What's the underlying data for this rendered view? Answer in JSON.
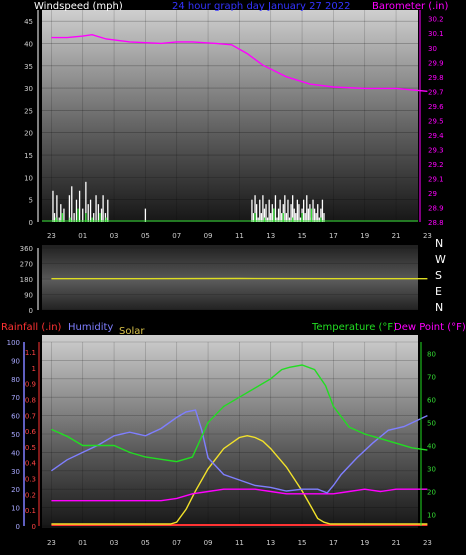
{
  "colors": {
    "wind": "#ffffff",
    "gust": "#33dd33",
    "barometer": "#ff00ff",
    "wind_dir": "#dddd22",
    "rain": "#ff3333",
    "humidity": "#7f7fff",
    "solar": "#f2e22a",
    "temperature": "#22dd22",
    "dew_point": "#ff00ff",
    "title": "#3333ff"
  },
  "time_labels": [
    "23",
    "01",
    "03",
    "05",
    "07",
    "09",
    "11",
    "13",
    "15",
    "17",
    "19",
    "21",
    "23"
  ],
  "chart_data": [
    {
      "type": "line",
      "title": "24 hour graph day   January 27 2022",
      "left_axis": {
        "label": "Windspeed (mph)",
        "ticks": [
          "0",
          "5",
          "10",
          "15",
          "20",
          "25",
          "30",
          "35",
          "40",
          "45"
        ],
        "range": [
          0,
          47.5
        ]
      },
      "right_axis": {
        "label": "Barometer (.in)",
        "ticks": [
          "28.8",
          "28.9",
          "29",
          "29.1",
          "29.2",
          "29.3",
          "29.4",
          "29.5",
          "29.6",
          "29.7",
          "29.8",
          "29.9",
          "30",
          "30.1",
          "30.2"
        ],
        "range": [
          28.8,
          30.26
        ]
      },
      "x_hours": [
        0,
        24
      ],
      "grid": true,
      "series": [
        {
          "name": "Barometer (.in)",
          "axis": "right",
          "x": [
            0,
            1,
            2,
            2.6,
            3.5,
            5,
            7,
            8,
            9,
            10.5,
            11.5,
            12.5,
            13.5,
            15,
            16.5,
            18,
            20,
            22,
            24
          ],
          "y": [
            30.07,
            30.07,
            30.08,
            30.09,
            30.06,
            30.04,
            30.03,
            30.04,
            30.04,
            30.03,
            30.02,
            29.96,
            29.88,
            29.8,
            29.75,
            29.73,
            29.72,
            29.72,
            29.7
          ]
        },
        {
          "name": "wind speed",
          "axis": "left",
          "x": [
            0.1,
            0.2,
            0.35,
            0.5,
            0.6,
            0.8,
            1.0,
            1.15,
            1.3,
            1.45,
            1.6,
            1.8,
            2.0,
            2.2,
            2.35,
            2.5,
            2.7,
            2.85,
            3.0,
            3.1,
            3.2,
            3.3,
            3.45,
            3.6,
            3.8,
            4.0,
            4.2,
            5.8,
            6.0,
            6.2,
            12.8,
            12.9,
            13.0,
            13.1,
            13.2,
            13.3,
            13.4,
            13.5,
            13.6,
            13.7,
            13.8,
            13.9,
            14.0,
            14.1,
            14.2,
            14.3,
            14.4,
            14.5,
            14.6,
            14.7,
            14.8,
            14.9,
            15.0,
            15.1,
            15.2,
            15.3,
            15.4,
            15.5,
            15.6,
            15.7,
            15.8,
            15.9,
            16.0,
            16.1,
            16.2,
            16.3,
            16.4,
            16.5,
            16.6,
            16.7,
            16.8,
            16.9,
            17.0,
            17.1,
            17.2,
            17.3,
            17.4,
            17.5,
            17.6
          ],
          "y": [
            7,
            2,
            6,
            1,
            4,
            3,
            0,
            6,
            8,
            2,
            5,
            7,
            3,
            9,
            4,
            5,
            2,
            6,
            4,
            0,
            3,
            6,
            2,
            5,
            0,
            0,
            0,
            0,
            3,
            0,
            5,
            2,
            6,
            4,
            1,
            5,
            2,
            6,
            3,
            4,
            1,
            5,
            2,
            4,
            3,
            6,
            1,
            3,
            5,
            2,
            4,
            6,
            2,
            5,
            1,
            4,
            6,
            3,
            2,
            5,
            4,
            1,
            3,
            5,
            2,
            6,
            3,
            4,
            1,
            5,
            3,
            2,
            4,
            1,
            3,
            5,
            2,
            0,
            0
          ]
        },
        {
          "name": "wind gust",
          "axis": "left",
          "x": [
            0.3,
            0.7,
            1.2,
            1.7,
            2.2,
            2.6,
            3.1,
            3.5,
            4.0,
            13.0,
            13.6,
            14.2,
            14.8,
            15.4,
            16.0,
            16.6,
            17.2
          ],
          "y": [
            1,
            2,
            1,
            3,
            2,
            1,
            2,
            1,
            0,
            2,
            1,
            3,
            2,
            1,
            2,
            3,
            1
          ]
        }
      ]
    },
    {
      "type": "line",
      "left_axis": {
        "ticks": [
          "0",
          "90",
          "180",
          "270",
          "360"
        ],
        "range": [
          0,
          360
        ]
      },
      "right_labels": [
        "N",
        "W",
        "S",
        "E",
        "N"
      ],
      "series": [
        {
          "name": "wind direction",
          "x": [
            0,
            6,
            12,
            18,
            24
          ],
          "y": [
            182,
            182,
            183,
            182,
            182
          ]
        }
      ]
    },
    {
      "type": "line",
      "labels": {
        "rainfall": "Rainfall (.in)",
        "humidity": "Humidity",
        "solar": "Solar",
        "temperature": "Temperature (°F)",
        "dew_point": "Dew Point (°F)"
      },
      "humidity_axis": {
        "ticks": [
          "0",
          "10",
          "20",
          "30",
          "40",
          "50",
          "60",
          "70",
          "80",
          "90",
          "100"
        ],
        "range": [
          0,
          100
        ]
      },
      "rain_axis": {
        "ticks": [
          "0",
          "0.1",
          "0.2",
          "0.3",
          "0.4",
          "0.5",
          "0.6",
          "0.7",
          "0.8",
          "0.9",
          "1",
          "1.1"
        ],
        "range": [
          0,
          1.1
        ]
      },
      "temp_axis": {
        "ticks": [
          "10",
          "20",
          "30",
          "40",
          "50",
          "60",
          "70",
          "80"
        ],
        "range": [
          5,
          85
        ]
      },
      "grid": true,
      "series": [
        {
          "name": "Humidity",
          "axis": "humidity",
          "x": [
            0,
            1,
            2,
            3,
            4,
            5,
            6,
            7,
            8,
            8.6,
            9.2,
            9.6,
            10,
            11,
            12,
            13,
            14,
            15,
            16,
            17,
            17.6,
            18,
            18.5,
            19.5,
            20.5,
            21.5,
            22.5,
            23.5,
            24
          ],
          "y": [
            30,
            36,
            40,
            44,
            49,
            51,
            49,
            53,
            59,
            62,
            63,
            52,
            37,
            28,
            25,
            22,
            21,
            19,
            20,
            20,
            18,
            22,
            28,
            37,
            45,
            52,
            54,
            58,
            60
          ]
        },
        {
          "name": "Temperature (°F)",
          "axis": "temp",
          "x": [
            0,
            1,
            2,
            3,
            4,
            5,
            6,
            7,
            8,
            9,
            10,
            11,
            12,
            13,
            14,
            14.7,
            15.2,
            16,
            16.8,
            17.5,
            18,
            19,
            20,
            21,
            22,
            23,
            24
          ],
          "y": [
            47,
            44,
            40,
            40,
            40,
            37,
            35,
            34,
            33,
            35,
            50,
            57,
            61,
            65,
            69,
            73,
            74,
            75,
            73,
            66,
            57,
            48,
            45,
            43,
            41,
            39,
            38
          ]
        },
        {
          "name": "Dew Point (°F)",
          "axis": "temp",
          "x": [
            0,
            1,
            2,
            3,
            4,
            5,
            6,
            7,
            8,
            9,
            10,
            11,
            12,
            13,
            14,
            15,
            16,
            17,
            18,
            19,
            20,
            21,
            22,
            23,
            24
          ],
          "y": [
            16,
            16,
            16,
            16,
            16,
            16,
            16,
            16,
            17,
            19,
            20,
            21,
            21,
            21,
            20,
            19,
            19,
            19,
            19,
            20,
            21,
            20,
            21,
            21,
            21
          ]
        },
        {
          "name": "Solar",
          "axis": "humidity",
          "x": [
            0,
            7.6,
            8.0,
            8.6,
            9.2,
            10,
            11,
            12,
            12.5,
            13,
            13.5,
            14,
            15,
            16,
            16.6,
            17.0,
            17.4,
            17.8,
            24
          ],
          "y": [
            0,
            0,
            1,
            8,
            18,
            30,
            41,
            47,
            48,
            47,
            45,
            41,
            31,
            18,
            9,
            3,
            1,
            0,
            0
          ]
        },
        {
          "name": "Rainfall (.in)",
          "axis": "rain",
          "x": [
            0,
            24
          ],
          "y": [
            0,
            0
          ]
        }
      ]
    }
  ]
}
